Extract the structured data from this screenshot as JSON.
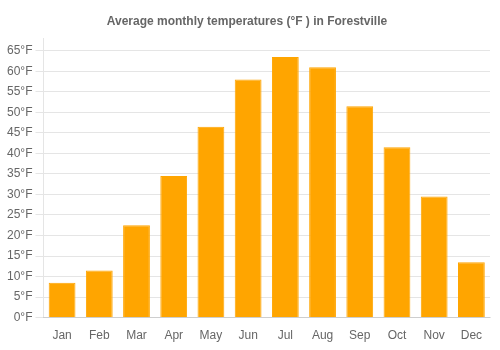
{
  "chart_data": {
    "type": "bar",
    "title": "Average monthly temperatures (°F ) in Forestville",
    "categories": [
      "Jan",
      "Feb",
      "Mar",
      "Apr",
      "May",
      "Jun",
      "Jul",
      "Aug",
      "Sep",
      "Oct",
      "Nov",
      "Dec"
    ],
    "values": [
      8.5,
      11.5,
      22.5,
      34.5,
      46.5,
      58.0,
      63.5,
      61.0,
      51.5,
      41.5,
      29.5,
      13.5
    ],
    "color": "#FFA500",
    "ylim": [
      0,
      68
    ],
    "yticks": [
      {
        "value": 0,
        "label": "0°F"
      },
      {
        "value": 5,
        "label": "5°F"
      },
      {
        "value": 10,
        "label": "10°F"
      },
      {
        "value": 15,
        "label": "15°F"
      },
      {
        "value": 20,
        "label": "20°F"
      },
      {
        "value": 25,
        "label": "25°F"
      },
      {
        "value": 30,
        "label": "30°F"
      },
      {
        "value": 35,
        "label": "35°F"
      },
      {
        "value": 40,
        "label": "40°F"
      },
      {
        "value": 45,
        "label": "45°F"
      },
      {
        "value": 50,
        "label": "50°F"
      },
      {
        "value": 55,
        "label": "55°F"
      },
      {
        "value": 60,
        "label": "60°F"
      },
      {
        "value": 65,
        "label": "65°F"
      }
    ],
    "grid": true
  }
}
